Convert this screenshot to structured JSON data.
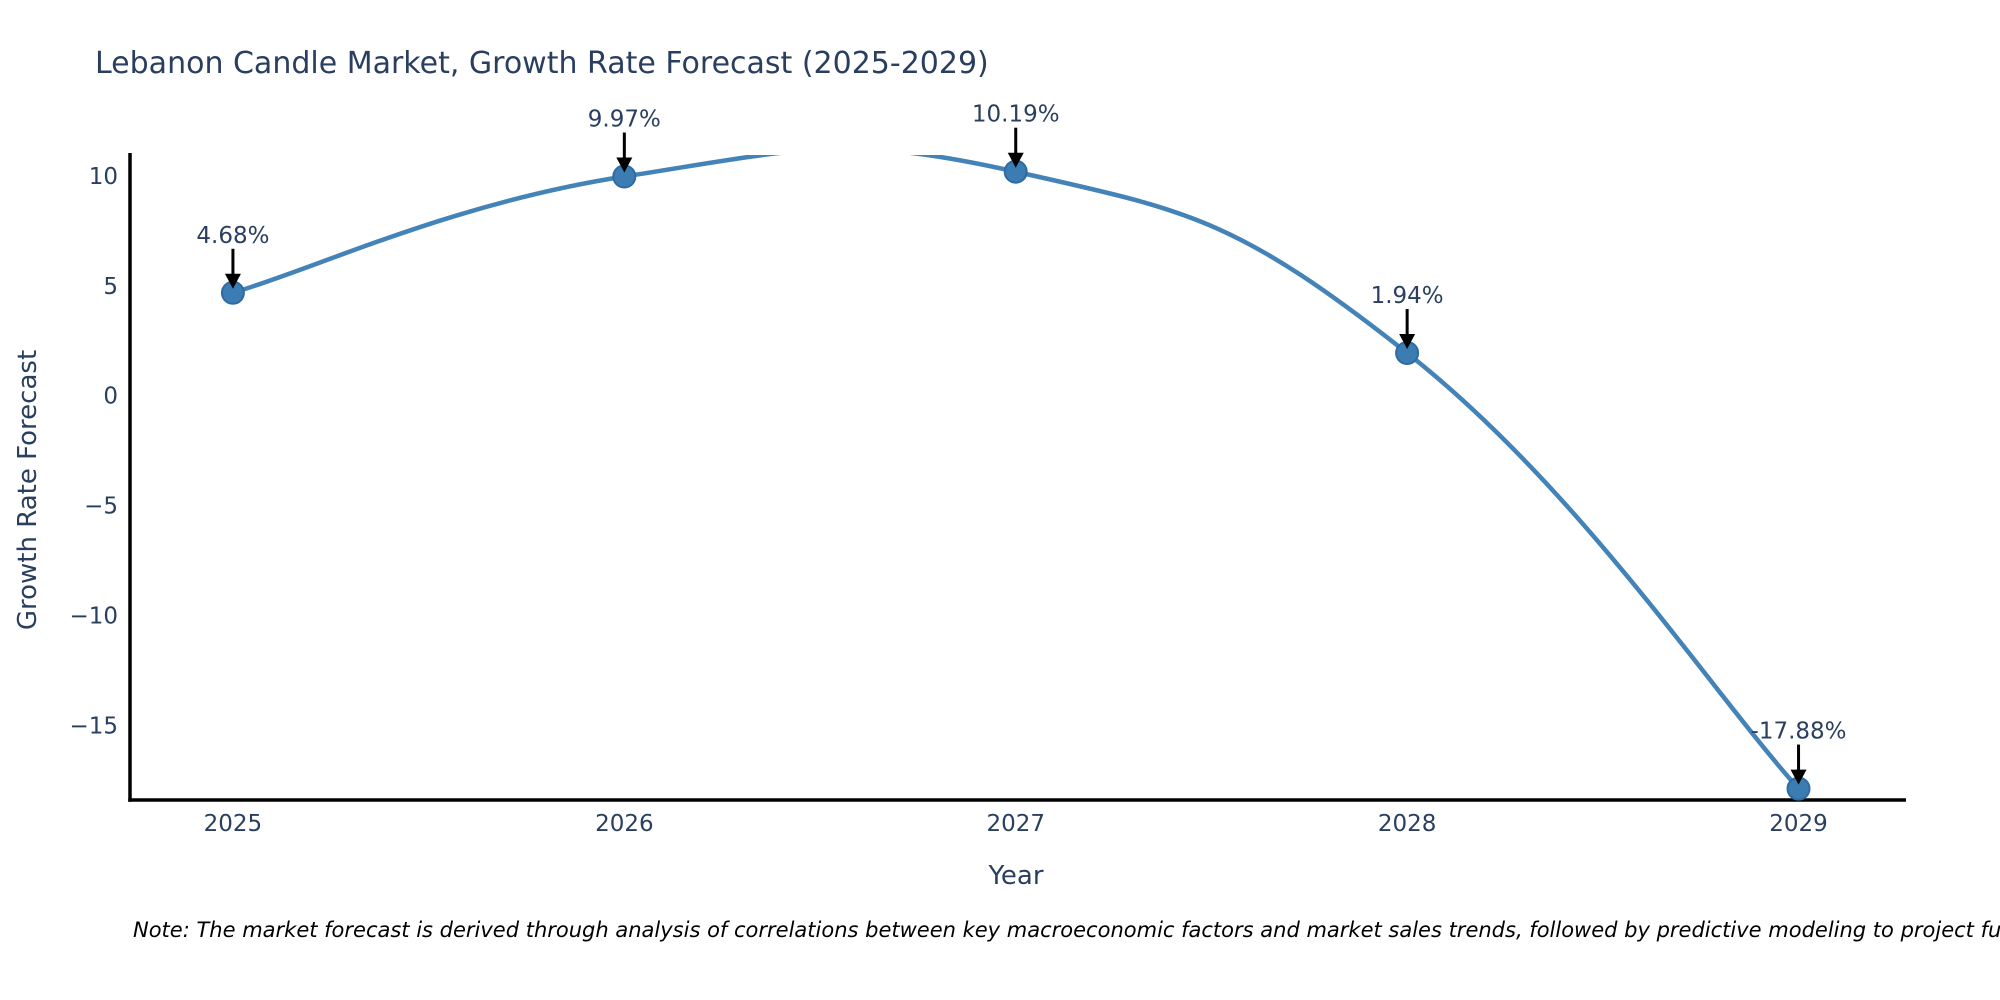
{
  "page": {
    "background": "#ffffff"
  },
  "chart_data": {
    "type": "line",
    "line_shape": "spline",
    "title": "Lebanon Candle Market, Growth Rate Forecast (2025-2029)",
    "xlabel": "Year",
    "ylabel": "Growth Rate Forecast",
    "x": [
      2025,
      2026,
      2027,
      2028,
      2029
    ],
    "y": [
      4.68,
      9.97,
      10.19,
      1.94,
      -17.88
    ],
    "point_labels": [
      "4.68%",
      "9.97%",
      "10.19%",
      "1.94%",
      "-17.88%"
    ],
    "x_tick_labels": [
      "2025",
      "2026",
      "2027",
      "2028",
      "2029"
    ],
    "y_ticks": [
      10,
      5,
      0,
      -5,
      -10,
      -15
    ],
    "y_tick_labels": [
      "10",
      "5",
      "0",
      "−5",
      "−10",
      "−15"
    ],
    "xlim": [
      2024.737,
      2029.272
    ],
    "ylim": [
      -18.4,
      10.95
    ],
    "grid": false,
    "legend": "none",
    "line_color": "#4383b8",
    "marker_color": "#3b7cb2",
    "marker_edge_color": "#2f6ba3",
    "axis_color": "#000000",
    "text_color": "#2a3f5f",
    "annotation_arrow_color": "#000000",
    "note": "Note: The market forecast is derived through analysis of correlations between key macroeconomic factors and market sales trends, followed by predictive modeling to project future sales"
  }
}
